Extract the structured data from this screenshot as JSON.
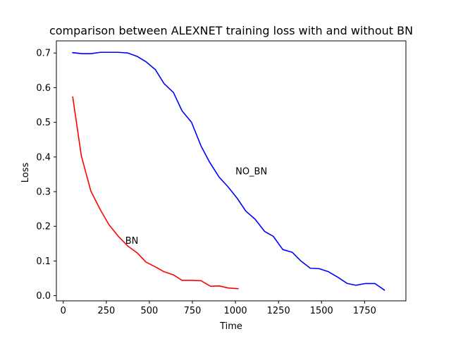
{
  "chart_data": {
    "type": "line",
    "title": "comparison between ALEXNET training loss with and without BN",
    "xlabel": "Time",
    "ylabel": "Loss",
    "xlim": [
      -40,
      1990
    ],
    "ylim": [
      -0.015,
      0.735
    ],
    "xticks": [
      0,
      250,
      500,
      750,
      1000,
      1250,
      1500,
      1750
    ],
    "yticks": [
      0.0,
      0.1,
      0.2,
      0.3,
      0.4,
      0.5,
      0.6,
      0.7
    ],
    "ytick_labels": [
      "0.0",
      "0.1",
      "0.2",
      "0.3",
      "0.4",
      "0.5",
      "0.6",
      "0.7"
    ],
    "grid": false,
    "legend": "none",
    "series": [
      {
        "color": "#0000ff",
        "x": [
          55,
          110,
          160,
          215,
          265,
          320,
          375,
          430,
          480,
          535,
          585,
          640,
          690,
          745,
          800,
          850,
          905,
          955,
          1010,
          1060,
          1115,
          1170,
          1220,
          1275,
          1330,
          1380,
          1435,
          1485,
          1540,
          1595,
          1650,
          1700,
          1755,
          1810,
          1865
        ],
        "y": [
          0.701,
          0.698,
          0.698,
          0.702,
          0.702,
          0.702,
          0.7,
          0.69,
          0.675,
          0.652,
          0.612,
          0.586,
          0.533,
          0.5,
          0.432,
          0.385,
          0.342,
          0.315,
          0.281,
          0.244,
          0.22,
          0.185,
          0.171,
          0.133,
          0.125,
          0.1,
          0.079,
          0.078,
          0.069,
          0.053,
          0.035,
          0.03,
          0.035,
          0.035,
          0.016
        ]
      },
      {
        "color": "#ff0000",
        "x": [
          55,
          105,
          160,
          215,
          265,
          320,
          375,
          430,
          480,
          535,
          585,
          640,
          690,
          745,
          800,
          855,
          905,
          960,
          1015
        ],
        "y": [
          0.573,
          0.403,
          0.302,
          0.248,
          0.205,
          0.171,
          0.143,
          0.123,
          0.097,
          0.083,
          0.069,
          0.06,
          0.044,
          0.044,
          0.043,
          0.027,
          0.028,
          0.022,
          0.02
        ]
      }
    ],
    "annotations": [
      {
        "text": "NO_BN",
        "x": 1000,
        "y": 0.35
      },
      {
        "text": "BN",
        "x": 360,
        "y": 0.15
      }
    ]
  }
}
